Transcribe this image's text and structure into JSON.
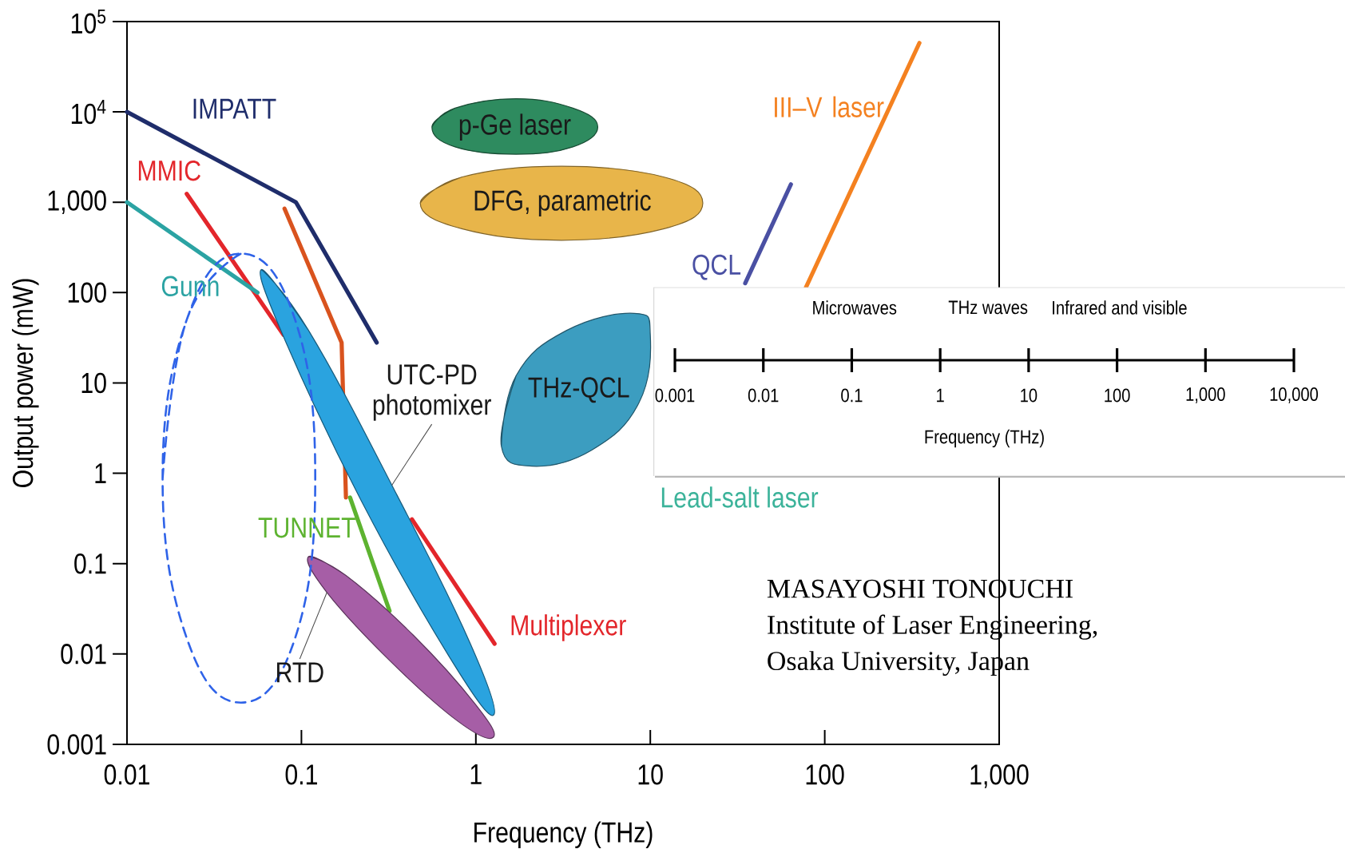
{
  "chart_data": [
    {
      "type": "line",
      "xlabel": "Frequency (THz)",
      "ylabel": "Output power (mW)",
      "log": "xy",
      "xlim": [
        0.01,
        1000
      ],
      "ylim": [
        0.001,
        100000
      ],
      "xticks": [
        0.01,
        0.1,
        1,
        10,
        100,
        {
          "value": 1000,
          "label": "1,000"
        }
      ],
      "yticks": [
        0.001,
        0.01,
        0.1,
        1,
        10,
        100,
        {
          "value": 1000,
          "label": "1,000"
        },
        {
          "value": 10000,
          "label": "10$^{4}$"
        },
        {
          "value": 100000,
          "label": "10$^{5}$"
        }
      ],
      "series": [
        {
          "name": "IMPATT",
          "type": "line",
          "color": "#1f2d6b",
          "x": [
            0.01,
            0.093,
            0.27
          ],
          "values": [
            10000,
            1000,
            28
          ]
        },
        {
          "name": "MMIC",
          "type": "line",
          "color": "#e3262b",
          "x": [
            0.022,
            0.079
          ],
          "values": [
            1240,
            34
          ]
        },
        {
          "name": "Multiplexer",
          "type": "line",
          "color": "#e3262b",
          "x": [
            0.43,
            1.28
          ],
          "values": [
            0.31,
            0.013
          ]
        },
        {
          "name": "Gunn",
          "type": "line",
          "color": "#2ba3a3",
          "x": [
            0.01,
            0.056
          ],
          "values": [
            1000,
            100
          ]
        },
        {
          "type": "line",
          "color": "#d9531e",
          "x": [
            0.08,
            0.17,
            0.18
          ],
          "values": [
            850,
            28,
            0.54
          ]
        },
        {
          "name": "TUNNET",
          "type": "line",
          "color": "#5db330",
          "x": [
            0.19,
            0.32
          ],
          "values": [
            0.54,
            0.03
          ]
        },
        {
          "name": "QCL",
          "type": "line",
          "color": "#4a50a3",
          "x": [
            35,
            64
          ],
          "values": [
            127,
            1580
          ]
        },
        {
          "name": "III–V laser",
          "type": "line",
          "color": "#f48120",
          "x": [
            78,
            349
          ],
          "values": [
            114,
            58000
          ]
        },
        {
          "name": "p-Ge laser",
          "type": "area",
          "color": "#2e8b5f",
          "x": [
            0.56,
            0.76,
            1.7,
            3.6,
            5.0,
            3.6,
            1.7,
            0.76
          ],
          "values": [
            6800,
            11000,
            14000,
            11000,
            6800,
            4100,
            3400,
            4100
          ]
        },
        {
          "name": "DFG, parametric",
          "type": "area",
          "color": "#e8b54a",
          "x": [
            0.48,
            0.83,
            3.1,
            12,
            20,
            12,
            3.1,
            0.83
          ],
          "values": [
            980,
            1900,
            2500,
            1900,
            980,
            510,
            380,
            510
          ]
        },
        {
          "name": "THz-QCL",
          "type": "area",
          "color": "#3c9dc0",
          "x": [
            1.4,
            1.7,
            3.3,
            8.1,
            10,
            8.6,
            4.6,
            2.1
          ],
          "values": [
            2.0,
            12,
            38,
            59,
            34,
            6.0,
            1.8,
            1.2
          ]
        },
        {
          "name": "UTC-PD photomixer",
          "type": "area",
          "color": "#2aa3df",
          "x": [
            0.059,
            0.11,
            0.33,
            0.93,
            1.26,
            0.7,
            0.22,
            0.081
          ],
          "values": [
            180,
            38,
            0.74,
            0.013,
            0.0021,
            0.0095,
            0.5,
            29
          ]
        },
        {
          "name": "RTD",
          "type": "area",
          "color": "#a65ea6",
          "x": [
            0.11,
            0.18,
            0.44,
            0.99,
            1.26,
            0.79,
            0.32,
            0.14
          ],
          "values": [
            0.12,
            0.074,
            0.016,
            0.0028,
            0.0012,
            0.0018,
            0.0085,
            0.048
          ]
        },
        {
          "type": "line",
          "line_style": "dashed",
          "color": "#2f63e8",
          "x": [
            0.016,
            0.022,
            0.045,
            0.092,
            0.12,
            0.092,
            0.045,
            0.022,
            0.016
          ],
          "values": [
            0.88,
            50,
            270,
            50,
            0.88,
            0.015,
            0.0029,
            0.015,
            0.88
          ]
        }
      ],
      "annotations": [
        "Lead-salt laser",
        "MASAYOSHI TONOUCHI",
        "Institute of Laser Engineering,",
        "Osaka University, Japan"
      ]
    },
    {
      "type": "other",
      "xlabel": "Frequency (THz)",
      "annotations": [
        "Microwaves",
        "THz waves",
        "Infrared and visible",
        "0.001",
        "0.01",
        "0.1",
        "1",
        "10",
        "100",
        "1,000",
        "10,000"
      ]
    }
  ]
}
